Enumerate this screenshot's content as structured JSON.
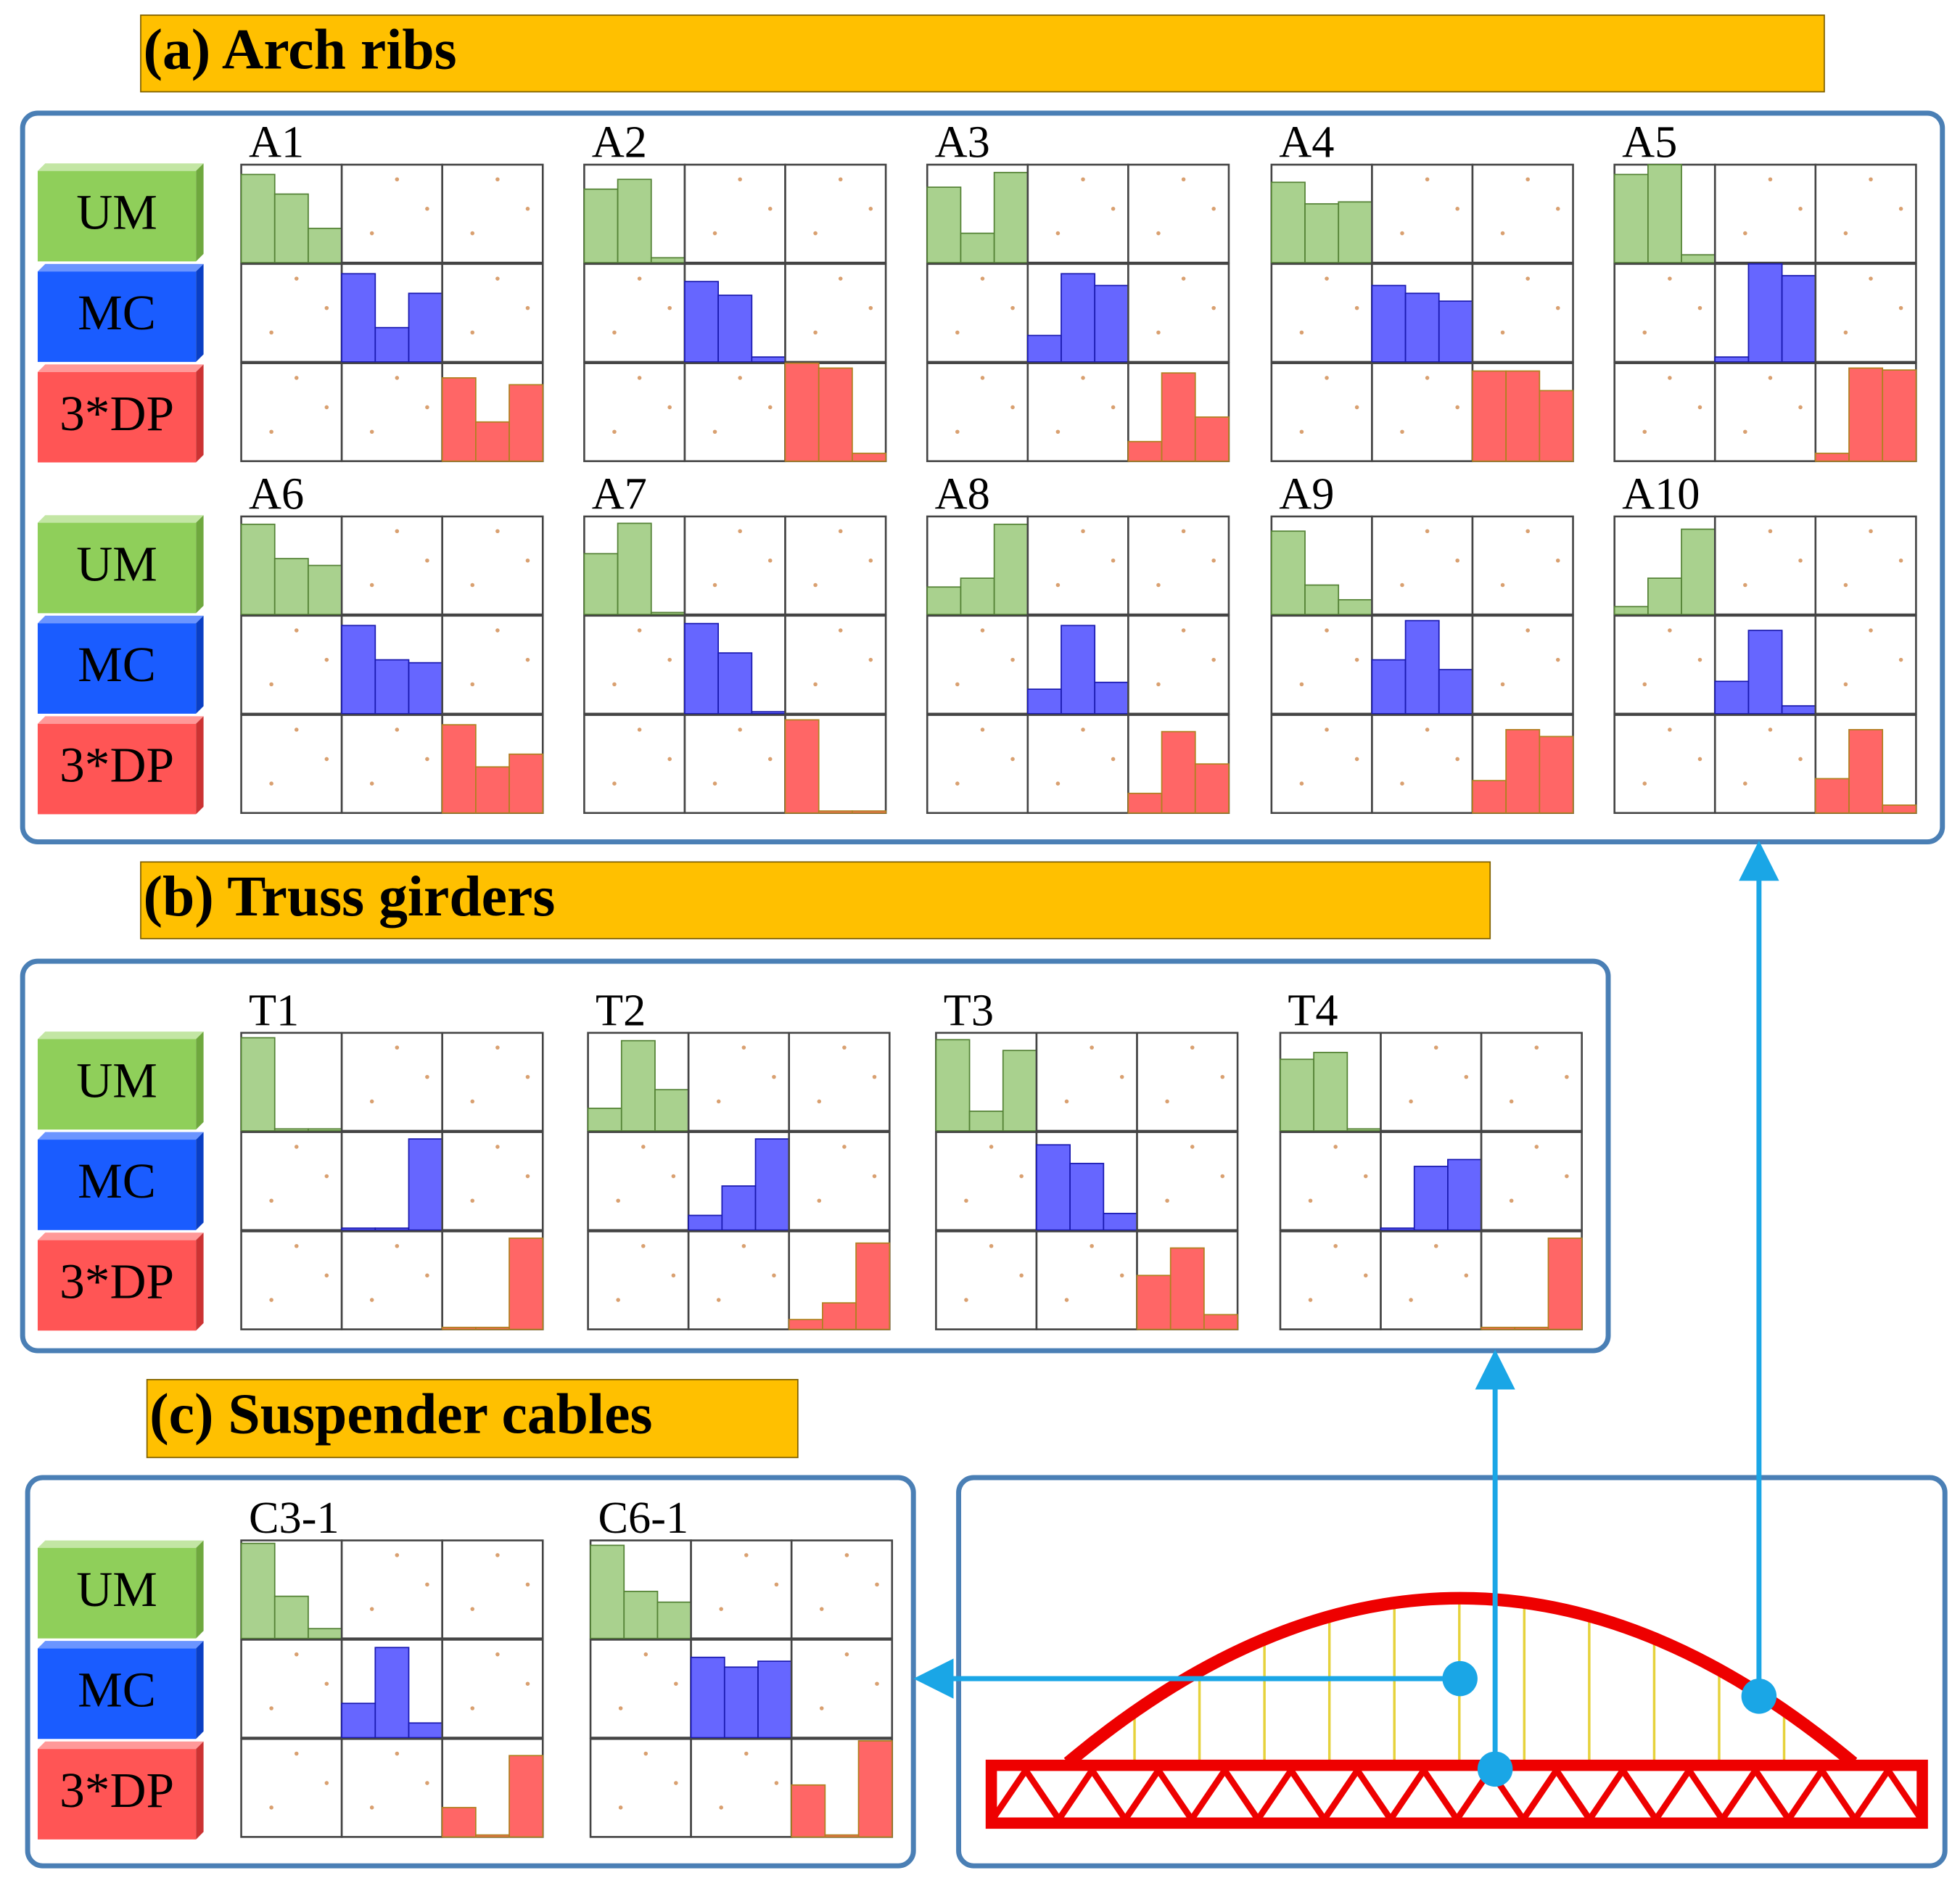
{
  "row_labels": [
    "UM",
    "MC",
    "3*DP"
  ],
  "sections": [
    {
      "title": "(a) Arch ribs",
      "members": [
        {
          "name": "A1",
          "hist": [
            [
              90,
              70,
              35
            ],
            [
              90,
              35,
              70
            ],
            [
              85,
              40,
              78
            ]
          ]
        },
        {
          "name": "A2",
          "hist": [
            [
              75,
              85,
              5
            ],
            [
              82,
              68,
              5
            ],
            [
              100,
              95,
              8
            ]
          ]
        },
        {
          "name": "A3",
          "hist": [
            [
              77,
              30,
              92
            ],
            [
              27,
              90,
              78
            ],
            [
              20,
              90,
              45
            ]
          ]
        },
        {
          "name": "A4",
          "hist": [
            [
              82,
              60,
              62
            ],
            [
              78,
              70,
              62
            ],
            [
              92,
              92,
              72
            ]
          ]
        },
        {
          "name": "A5",
          "hist": [
            [
              90,
              100,
              8
            ],
            [
              5,
              100,
              88
            ],
            [
              8,
              95,
              93
            ]
          ]
        },
        {
          "name": "A6",
          "hist": [
            [
              92,
              57,
              50
            ],
            [
              90,
              55,
              52
            ],
            [
              90,
              47,
              60
            ]
          ]
        },
        {
          "name": "A7",
          "hist": [
            [
              62,
              93,
              2
            ],
            [
              92,
              62,
              2
            ],
            [
              95,
              2,
              2
            ]
          ]
        },
        {
          "name": "A8",
          "hist": [
            [
              28,
              37,
              92
            ],
            [
              25,
              90,
              32
            ],
            [
              20,
              83,
              50
            ]
          ]
        },
        {
          "name": "A9",
          "hist": [
            [
              85,
              30,
              15
            ],
            [
              55,
              95,
              45
            ],
            [
              33,
              85,
              78
            ]
          ]
        },
        {
          "name": "A10",
          "hist": [
            [
              8,
              37,
              87
            ],
            [
              33,
              85,
              8
            ],
            [
              35,
              85,
              8
            ]
          ]
        }
      ]
    },
    {
      "title": "(b) Truss girders",
      "members": [
        {
          "name": "T1",
          "hist": [
            [
              95,
              2,
              2
            ],
            [
              2,
              2,
              93
            ],
            [
              2,
              2,
              93
            ]
          ]
        },
        {
          "name": "T2",
          "hist": [
            [
              23,
              92,
              42
            ],
            [
              15,
              45,
              93
            ],
            [
              10,
              27,
              88
            ]
          ]
        },
        {
          "name": "T3",
          "hist": [
            [
              93,
              20,
              82
            ],
            [
              87,
              68,
              17
            ],
            [
              55,
              83,
              15
            ]
          ]
        },
        {
          "name": "T4",
          "hist": [
            [
              73,
              80,
              2
            ],
            [
              2,
              65,
              72
            ],
            [
              2,
              2,
              93
            ]
          ]
        }
      ]
    },
    {
      "title": "(c) Suspender cables",
      "members": [
        {
          "name": "C3-1",
          "hist": [
            [
              97,
              43,
              10
            ],
            [
              35,
              92,
              15
            ],
            [
              30,
              2,
              83
            ]
          ]
        },
        {
          "name": "C6-1",
          "hist": [
            [
              95,
              48,
              37
            ],
            [
              82,
              72,
              78
            ],
            [
              53,
              2,
              98
            ]
          ]
        }
      ]
    }
  ]
}
